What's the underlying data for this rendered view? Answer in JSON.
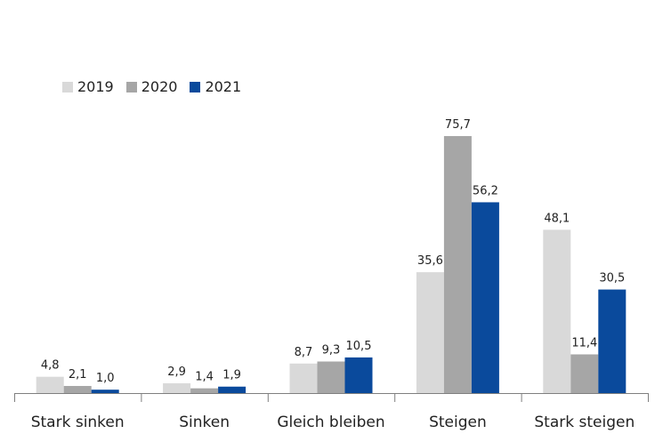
{
  "chart_data": {
    "type": "bar",
    "categories": [
      "Stark sinken",
      "Sinken",
      "Gleich bleiben",
      "Steigen",
      "Stark steigen"
    ],
    "series": [
      {
        "name": "2019",
        "color": "#d9d9d9",
        "values": [
          4.8,
          2.9,
          8.7,
          35.6,
          48.1
        ],
        "labels": [
          "4,8",
          "2,9",
          "8,7",
          "35,6",
          "48,1"
        ]
      },
      {
        "name": "2020",
        "color": "#a6a6a6",
        "values": [
          2.1,
          1.4,
          9.3,
          75.7,
          11.4
        ],
        "labels": [
          "2,1",
          "1,4",
          "9,3",
          "75,7",
          "11,4"
        ]
      },
      {
        "name": "2021",
        "color": "#0a4a9c",
        "values": [
          1.0,
          1.9,
          10.5,
          56.2,
          30.5
        ],
        "labels": [
          "1,0",
          "1,9",
          "10,5",
          "56,2",
          "30,5"
        ]
      }
    ],
    "ylim": [
      0,
      80
    ],
    "grid": false,
    "legend_position": "top-left",
    "title": "",
    "xlabel": "",
    "ylabel": ""
  }
}
